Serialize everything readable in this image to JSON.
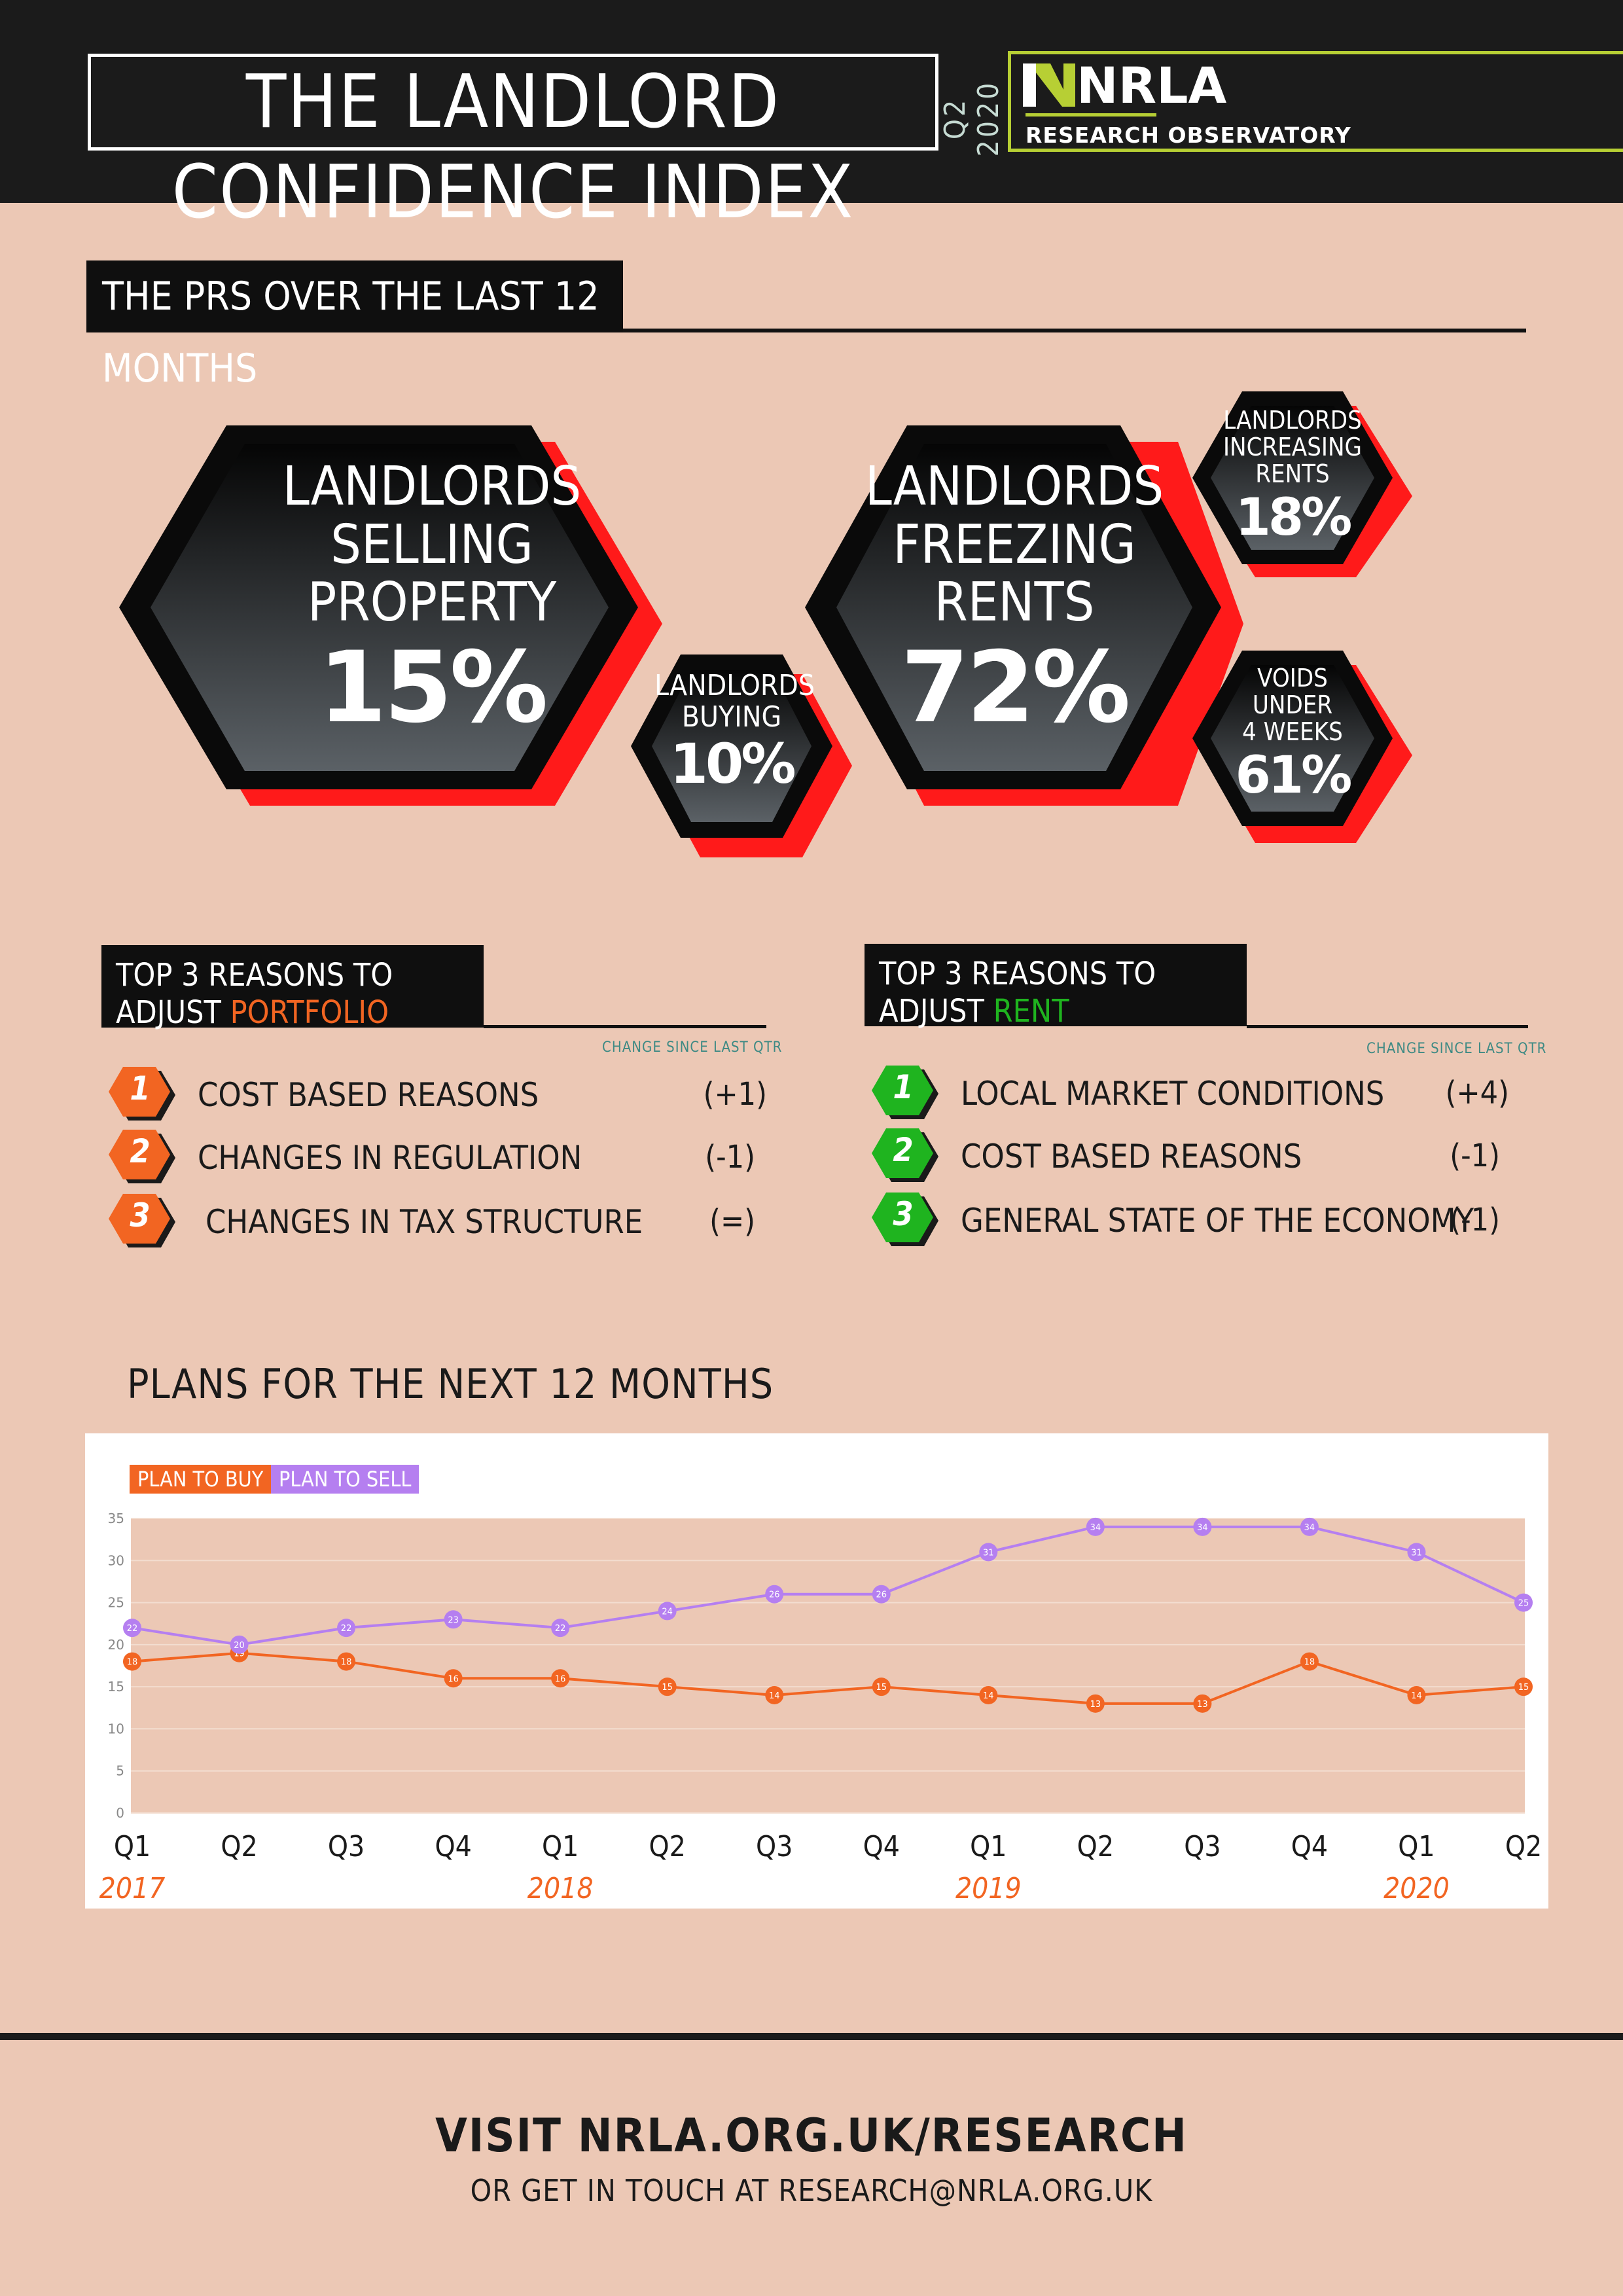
{
  "header": {
    "title": "THE LANDLORD CONFIDENCE INDEX",
    "quarter": "Q2 2020",
    "logo_text": "NRLA",
    "logo_sub": "RESEARCH OBSERVATORY"
  },
  "prs": {
    "heading": "THE PRS OVER THE LAST 12 MONTHS",
    "stats": [
      {
        "lines": [
          "LANDLORDS",
          "SELLING",
          "PROPERTY"
        ],
        "value": "15%"
      },
      {
        "lines": [
          "LANDLORDS",
          "BUYING"
        ],
        "value": "10%"
      },
      {
        "lines": [
          "LANDLORDS",
          "FREEZING",
          "RENTS"
        ],
        "value": "72%"
      },
      {
        "lines": [
          "LANDLORDS",
          "INCREASING",
          "RENTS"
        ],
        "value": "18%"
      },
      {
        "lines": [
          "VOIDS",
          "UNDER",
          "4 WEEKS"
        ],
        "value": "61%"
      }
    ]
  },
  "portfolio": {
    "heading_line1": "TOP 3 REASONS TO",
    "heading_prefix": "ADJUST ",
    "heading_highlight": "PORTFOLIO",
    "change_note": "CHANGE SINCE LAST QTR",
    "accent": "#f26522",
    "items": [
      {
        "rank": "1",
        "label": "COST BASED REASONS",
        "change": "(+1)"
      },
      {
        "rank": "2",
        "label": "CHANGES IN REGULATION",
        "change": "(-1)"
      },
      {
        "rank": "3",
        "label": "CHANGES IN TAX STRUCTURE",
        "change": "(=)"
      }
    ]
  },
  "rent": {
    "heading_line1": "TOP 3 REASONS TO",
    "heading_prefix": "ADJUST ",
    "heading_highlight": "RENT",
    "change_note": "CHANGE SINCE LAST QTR",
    "accent": "#1fb41f",
    "items": [
      {
        "rank": "1",
        "label": "LOCAL MARKET CONDITIONS",
        "change": "(+4)"
      },
      {
        "rank": "2",
        "label": "COST BASED REASONS",
        "change": "(-1)"
      },
      {
        "rank": "3",
        "label": "GENERAL STATE OF THE ECONOMY",
        "change": "(-1)"
      }
    ]
  },
  "plans": {
    "heading": "PLANS FOR THE NEXT 12 MONTHS"
  },
  "chart_data": {
    "type": "line",
    "title": "",
    "xlabel": "",
    "ylabel": "",
    "ylim": [
      0,
      35
    ],
    "yticks": [
      0,
      5,
      10,
      15,
      20,
      25,
      30,
      35
    ],
    "categories": [
      "Q1",
      "Q2",
      "Q3",
      "Q4",
      "Q1",
      "Q2",
      "Q3",
      "Q4",
      "Q1",
      "Q2",
      "Q3",
      "Q4",
      "Q1",
      "Q2"
    ],
    "year_labels": [
      {
        "index": 0,
        "label": "2017"
      },
      {
        "index": 4,
        "label": "2018"
      },
      {
        "index": 8,
        "label": "2019"
      },
      {
        "index": 12,
        "label": "2020"
      }
    ],
    "grid": true,
    "legend": "top-left",
    "series": [
      {
        "name": "PLAN TO BUY",
        "color": "#f26522",
        "values": [
          18,
          19,
          18,
          16,
          16,
          15,
          14,
          15,
          14,
          13,
          13,
          18,
          14,
          15
        ]
      },
      {
        "name": "PLAN TO SELL",
        "color": "#b57ff0",
        "values": [
          22,
          20,
          22,
          23,
          22,
          24,
          26,
          26,
          31,
          34,
          34,
          34,
          31,
          25
        ]
      }
    ]
  },
  "footer": {
    "line1": "VISIT NRLA.ORG.UK/RESEARCH",
    "line2": "OR GET IN TOUCH AT RESEARCH@NRLA.ORG.UK"
  }
}
